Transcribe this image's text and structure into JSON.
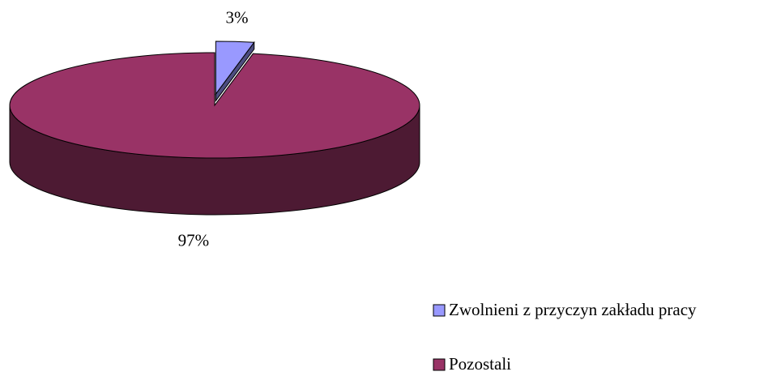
{
  "chart_data": {
    "type": "pie3d",
    "categories": [
      "Zwolnieni z przyczyn zakładu pracy",
      "Pozostali"
    ],
    "values": [
      3,
      97
    ],
    "value_labels": [
      "3%",
      "97%"
    ],
    "colors": [
      "#9999ff",
      "#993366"
    ],
    "exploded": [
      true,
      false
    ],
    "legend": "bottom-right"
  }
}
